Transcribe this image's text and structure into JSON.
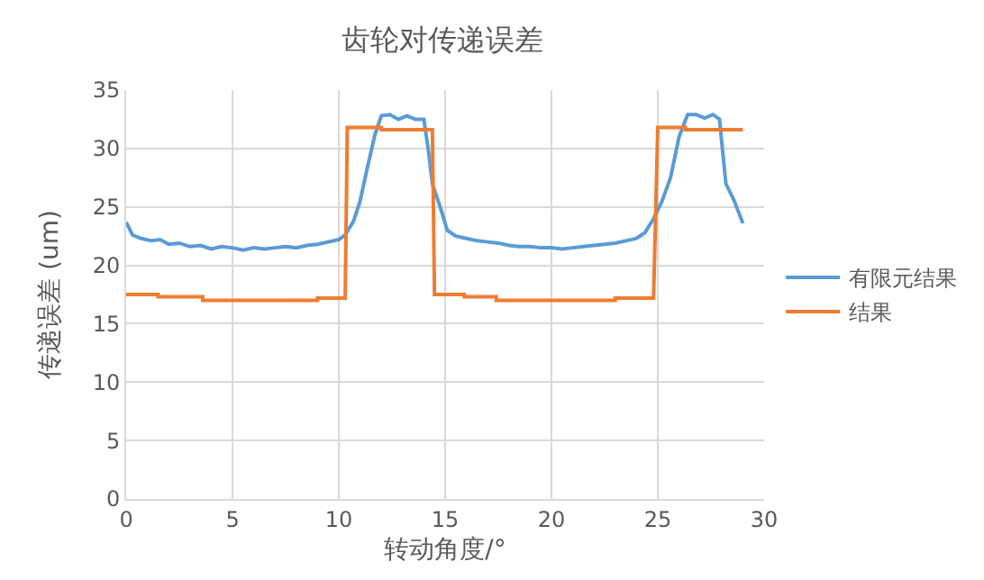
{
  "chart_data": {
    "type": "line",
    "title": "齿轮对传递误差",
    "xlabel": "转动角度/°",
    "ylabel": "传递误差 (um)",
    "xlim": [
      0,
      30
    ],
    "xticks": [
      0,
      5,
      10,
      15,
      20,
      25,
      30
    ],
    "ylim": [
      0,
      35
    ],
    "yticks": [
      0,
      5,
      10,
      15,
      20,
      25,
      30,
      35
    ],
    "grid": true,
    "legend": "right",
    "marker": "none",
    "line_style": "solid",
    "series": [
      {
        "name": "有限元结果",
        "color": "#5b9bd5",
        "x": [
          0,
          0.3,
          0.7,
          1.2,
          1.6,
          2,
          2.5,
          3,
          3.5,
          4,
          4.5,
          5,
          5.5,
          6,
          6.5,
          7,
          7.5,
          8,
          8.5,
          9,
          9.5,
          10,
          10.3,
          10.7,
          11,
          11.3,
          11.7,
          12,
          12.4,
          12.8,
          13.2,
          13.6,
          14,
          14.2,
          14.4,
          14.8,
          15.1,
          15.5,
          16,
          16.5,
          17,
          17.5,
          18,
          18.5,
          19,
          19.5,
          20,
          20.5,
          21,
          21.5,
          22,
          22.5,
          23,
          23.5,
          24,
          24.4,
          24.8,
          25.2,
          25.6,
          26,
          26.4,
          26.8,
          27.2,
          27.6,
          27.9,
          28.2,
          28.6,
          29
        ],
        "values": [
          23.7,
          22.6,
          22.3,
          22.1,
          22.2,
          21.8,
          21.9,
          21.6,
          21.7,
          21.4,
          21.6,
          21.5,
          21.3,
          21.5,
          21.4,
          21.5,
          21.6,
          21.5,
          21.7,
          21.8,
          22,
          22.2,
          22.6,
          23.8,
          25.5,
          28,
          31.2,
          32.8,
          32.9,
          32.5,
          32.8,
          32.5,
          32.5,
          30,
          27,
          24.8,
          23,
          22.5,
          22.3,
          22.1,
          22,
          21.9,
          21.7,
          21.6,
          21.6,
          21.5,
          21.5,
          21.4,
          21.5,
          21.6,
          21.7,
          21.8,
          21.9,
          22.1,
          22.3,
          22.8,
          24,
          25.5,
          27.5,
          31,
          32.9,
          32.9,
          32.6,
          32.9,
          32.5,
          27,
          25.5,
          23.6
        ]
      },
      {
        "name": "结果",
        "color": "#ed7d31",
        "x": [
          0,
          1.5,
          1.5,
          3.6,
          3.6,
          9,
          9,
          10.3,
          10.4,
          12,
          12,
          14.4,
          14.5,
          15.9,
          15.9,
          17.4,
          17.4,
          23,
          23,
          24.8,
          25,
          26.3,
          26.3,
          29
        ],
        "values": [
          17.5,
          17.5,
          17.3,
          17.3,
          17,
          17,
          17.2,
          17.2,
          31.8,
          31.8,
          31.6,
          31.6,
          17.5,
          17.5,
          17.3,
          17.3,
          17,
          17,
          17.2,
          17.2,
          31.8,
          31.8,
          31.6,
          31.6
        ]
      }
    ]
  }
}
